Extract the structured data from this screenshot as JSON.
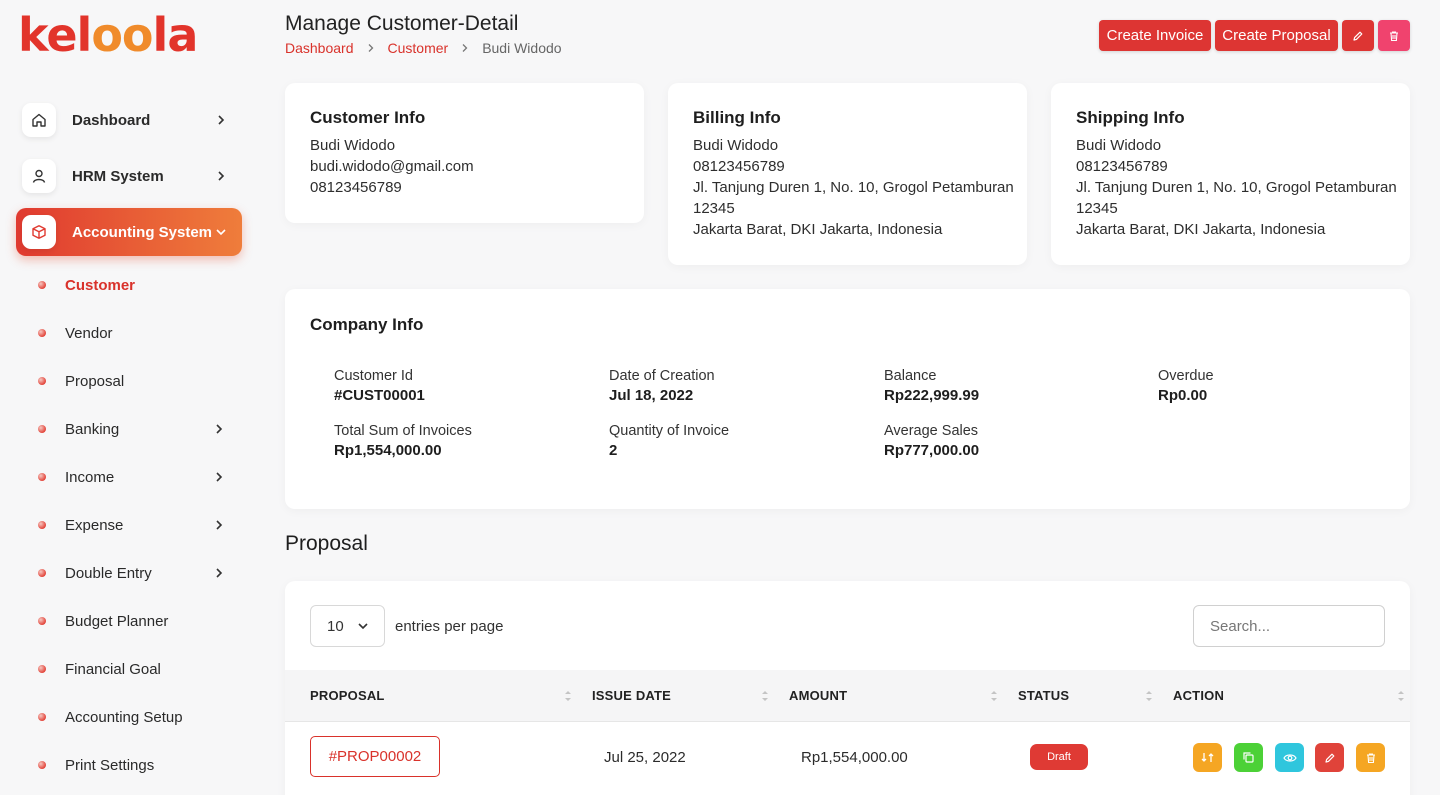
{
  "brand": {
    "logo_text_1": "kel",
    "logo_text_2": "oo",
    "logo_text_3": "la",
    "primary": "#dd3533",
    "accent": "#ef7d3b"
  },
  "sidebar": {
    "items": [
      {
        "label": "Dashboard",
        "icon": "home-icon"
      },
      {
        "label": "HRM System",
        "icon": "user-icon"
      },
      {
        "label": "Accounting System",
        "icon": "box-icon"
      }
    ],
    "sub_items": [
      {
        "label": "Customer"
      },
      {
        "label": "Vendor"
      },
      {
        "label": "Proposal"
      },
      {
        "label": "Banking"
      },
      {
        "label": "Income"
      },
      {
        "label": "Expense"
      },
      {
        "label": "Double Entry"
      },
      {
        "label": "Budget Planner"
      },
      {
        "label": "Financial Goal"
      },
      {
        "label": "Accounting Setup"
      },
      {
        "label": "Print Settings"
      }
    ]
  },
  "header": {
    "title": "Manage Customer-Detail",
    "breadcrumb": [
      "Dashboard",
      "Customer",
      "Budi Widodo"
    ],
    "create_invoice": "Create Invoice",
    "create_proposal": "Create Proposal"
  },
  "customer_info": {
    "title": "Customer Info",
    "name": "Budi Widodo",
    "email": "budi.widodo@gmail.com",
    "phone": "08123456789"
  },
  "billing_info": {
    "title": "Billing Info",
    "name": "Budi Widodo",
    "phone": "08123456789",
    "address_1": "Jl. Tanjung Duren 1, No. 10, Grogol Petamburan",
    "postal": "12345",
    "address_2": "Jakarta Barat, DKI Jakarta, Indonesia"
  },
  "shipping_info": {
    "title": "Shipping Info",
    "name": "Budi Widodo",
    "phone": "08123456789",
    "address_1": "Jl. Tanjung Duren 1, No. 10, Grogol Petamburan",
    "postal": "12345",
    "address_2": "Jakarta Barat, DKI Jakarta, Indonesia"
  },
  "company_info": {
    "title": "Company Info",
    "stats": [
      {
        "label": "Customer Id",
        "value": "#CUST00001"
      },
      {
        "label": "Date of Creation",
        "value": "Jul 18, 2022"
      },
      {
        "label": "Balance",
        "value": "Rp222,999.99"
      },
      {
        "label": "Overdue",
        "value": "Rp0.00"
      },
      {
        "label": "Total Sum of Invoices",
        "value": "Rp1,554,000.00"
      },
      {
        "label": "Quantity of Invoice",
        "value": "2"
      },
      {
        "label": "Average Sales",
        "value": "Rp777,000.00"
      }
    ]
  },
  "proposal": {
    "section_title": "Proposal",
    "entries_value": "10",
    "entries_label": "entries per page",
    "search_placeholder": "Search...",
    "columns": [
      "PROPOSAL",
      "ISSUE DATE",
      "AMOUNT",
      "STATUS",
      "ACTION"
    ],
    "rows": [
      {
        "id": "#PROP00002",
        "issue_date": "Jul 25, 2022",
        "amount": "Rp1,554,000.00",
        "status": "Draft"
      }
    ],
    "action_colors": {
      "convert": "#f5a623",
      "duplicate": "#4cd137",
      "view": "#2fc6dd",
      "edit": "#e0433a",
      "delete": "#f5a623"
    }
  }
}
